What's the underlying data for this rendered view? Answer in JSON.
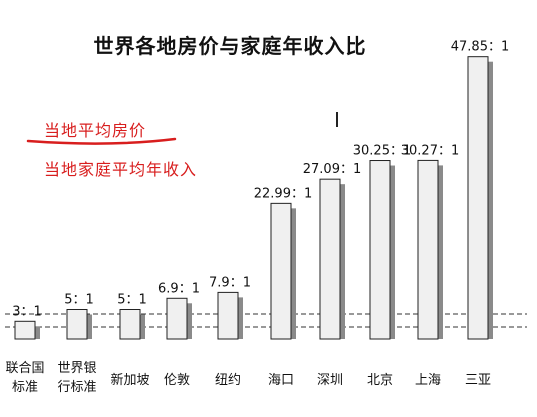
{
  "chart_data": {
    "type": "bar",
    "title": "世界各地房价与家庭年收入比",
    "legend": {
      "numerator": "当地平均房价",
      "denominator": "当地家庭平均年收入"
    },
    "categories": [
      "联合国\n标准",
      "世界银\n行标准",
      "新加坡",
      "伦敦",
      "纽约",
      "海口",
      "深圳",
      "北京",
      "上海",
      "三亚"
    ],
    "values": [
      3,
      5,
      5,
      6.9,
      7.9,
      22.99,
      27.09,
      30.25,
      30.27,
      47.85
    ],
    "data_labels": [
      "3：1",
      "5：1",
      "5：1",
      "6.9：1",
      "7.9：1",
      "22.99：1",
      "27.09：1",
      "30.25：1",
      "30.27：1",
      "47.85：1"
    ],
    "colors": {
      "bar_fill": "#f0f0f0",
      "bar_shadow": "#8a8a8a",
      "legend_text": "#d81e1e",
      "reference_line": "#333333"
    }
  }
}
